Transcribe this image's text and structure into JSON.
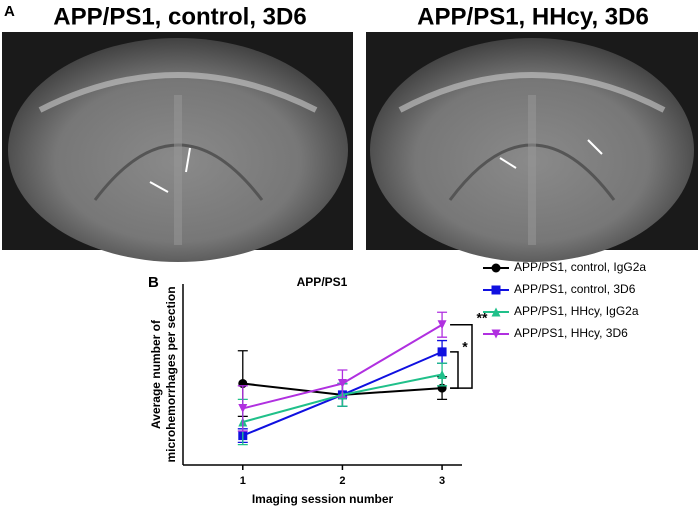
{
  "panel_labels": [
    "A",
    "B"
  ],
  "images": [
    {
      "title": "APP/PS1, control, 3D6"
    },
    {
      "title": "APP/PS1, HHcy, 3D6"
    }
  ],
  "chart_data": {
    "type": "line",
    "title": "APP/PS1",
    "xlabel": "Imaging session number",
    "ylabel": [
      "Average number of",
      "microhemorrhages per section"
    ],
    "x": [
      1,
      2,
      3
    ],
    "xlim": [
      0.4,
      3.2
    ],
    "xticks": [
      1,
      2,
      3
    ],
    "ylim": [
      0,
      8
    ],
    "legend": "outside-right",
    "series": [
      {
        "name": "APP/PS1, control, IgG2a",
        "color": "#000000",
        "marker": "circle",
        "values": [
          3.6,
          3.1,
          3.4
        ],
        "errors": [
          1.45,
          0.5,
          0.5
        ]
      },
      {
        "name": "APP/PS1, control, 3D6",
        "color": "#1010e0",
        "marker": "square",
        "values": [
          1.3,
          3.1,
          5.0
        ],
        "errors": [
          0.3,
          0.5,
          0.5
        ]
      },
      {
        "name": "APP/PS1, HHcy, IgG2a",
        "color": "#20c08a",
        "marker": "triangle-up",
        "values": [
          1.9,
          3.1,
          4.0
        ],
        "errors": [
          1.0,
          0.5,
          0.5
        ]
      },
      {
        "name": "APP/PS1, HHcy, 3D6",
        "color": "#b030e0",
        "marker": "triangle-down",
        "values": [
          2.5,
          3.6,
          6.2
        ],
        "errors": [
          1.0,
          0.6,
          0.55
        ]
      }
    ],
    "annotations": [
      "**",
      "*"
    ]
  }
}
